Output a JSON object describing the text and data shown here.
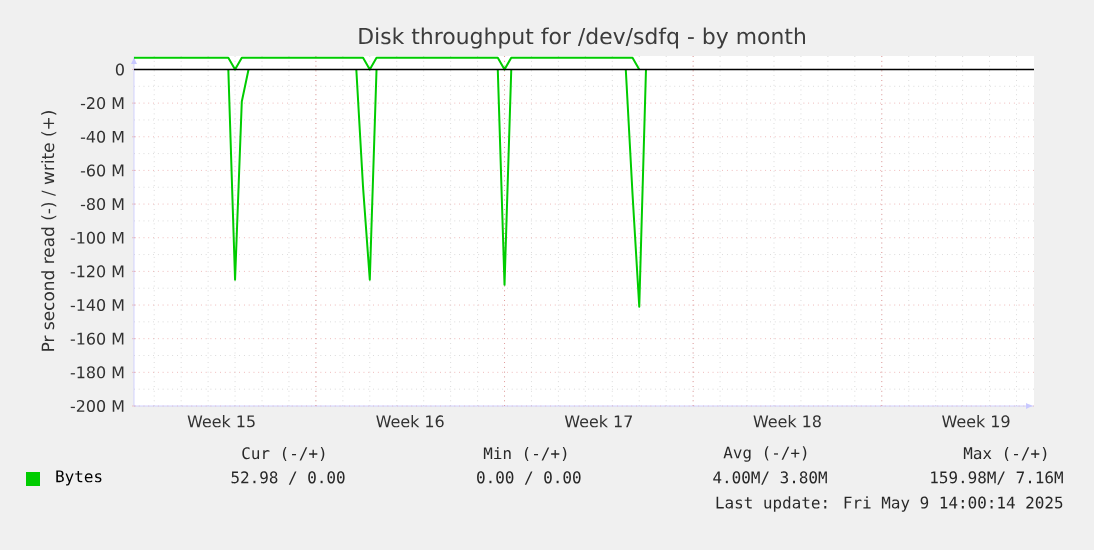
{
  "chart_data": {
    "type": "line",
    "title": "Disk throughput for /dev/sdfq - by month",
    "ylabel": "Pr second read (-) / write (+)",
    "categories": [
      null,
      null,
      null,
      null,
      null,
      null,
      null,
      null,
      null,
      null,
      null,
      null,
      null,
      "Week 15",
      null,
      null,
      null,
      null,
      null,
      null,
      null,
      null,
      null,
      null,
      null,
      null,
      null,
      null,
      null,
      null,
      null,
      null,
      null,
      null,
      null,
      null,
      null,
      null,
      null,
      null,
      null,
      "Week 16",
      null,
      null,
      null,
      null,
      null,
      null,
      null,
      null,
      null,
      null,
      null,
      null,
      null,
      null,
      null,
      null,
      null,
      null,
      null,
      null,
      null,
      null,
      null,
      null,
      null,
      null,
      null,
      "Week 17",
      null,
      null,
      null,
      null,
      null,
      null,
      null,
      null,
      null,
      null,
      null,
      null,
      null,
      null,
      null,
      null,
      null,
      null,
      null,
      null,
      null,
      null,
      null,
      null,
      null,
      null,
      null,
      "Week 18",
      null,
      null,
      null,
      null,
      null,
      null,
      null,
      null,
      null,
      null,
      null,
      null,
      null,
      null,
      null,
      null,
      null,
      null,
      null,
      null,
      null,
      null,
      null,
      null,
      null,
      null,
      null,
      "Week 19",
      null,
      null,
      null,
      null,
      null,
      null,
      null,
      null
    ],
    "ylim": [
      -200,
      8
    ],
    "yticks": [
      0,
      {
        "value": -20,
        "label": "-20 M"
      },
      {
        "value": -40,
        "label": "-40 M"
      },
      {
        "value": -60,
        "label": "-60 M"
      },
      {
        "value": -80,
        "label": "-80 M"
      },
      {
        "value": -100,
        "label": "-100 M"
      },
      {
        "value": -120,
        "label": "-120 M"
      },
      {
        "value": -140,
        "label": "-140 M"
      },
      {
        "value": -160,
        "label": "-160 M"
      },
      {
        "value": -180,
        "label": "-180 M"
      },
      {
        "value": -200,
        "label": "-200 M"
      }
    ],
    "grid": true,
    "legend": "bottom",
    "line_style": "solid",
    "ref_lines": [
      {
        "axis": "y",
        "value": 0,
        "color": "#000000"
      }
    ],
    "series": [
      {
        "color": "#00cc00",
        "values": [
          null,
          null,
          null,
          null,
          null,
          null,
          null,
          null,
          null,
          null,
          null,
          null,
          null,
          null,
          0,
          -125,
          -19,
          0,
          null,
          null,
          null,
          null,
          null,
          null,
          null,
          null,
          null,
          null,
          null,
          null,
          null,
          null,
          null,
          0,
          -70,
          -125,
          0,
          null,
          null,
          null,
          null,
          null,
          null,
          null,
          null,
          null,
          null,
          null,
          null,
          null,
          null,
          null,
          null,
          null,
          0,
          -128,
          0,
          null,
          null,
          null,
          null,
          null,
          null,
          null,
          null,
          null,
          null,
          null,
          null,
          null,
          null,
          null,
          null,
          0,
          -74,
          -141,
          0,
          null,
          null,
          null,
          null,
          null,
          null,
          null,
          null,
          null,
          null,
          null,
          null,
          null,
          null,
          null,
          null,
          null,
          null,
          null,
          null,
          null,
          null,
          null,
          null,
          null,
          null,
          null,
          null,
          null,
          null,
          null,
          null,
          null,
          null,
          null,
          null,
          null,
          null,
          null,
          null,
          null,
          null,
          null,
          null,
          null,
          null,
          null,
          null,
          null,
          null,
          null,
          null,
          null,
          null,
          null,
          null,
          null
        ]
      },
      {
        "name": "Bytes",
        "color": "#00cc00",
        "values": [
          7,
          7,
          7,
          7,
          7,
          7,
          7,
          7,
          7,
          7,
          7,
          7,
          7,
          7,
          7,
          0,
          7,
          7,
          7,
          7,
          7,
          7,
          7,
          7,
          7,
          7,
          7,
          7,
          7,
          7,
          7,
          7,
          7,
          7,
          7,
          0,
          7,
          7,
          7,
          7,
          7,
          7,
          7,
          7,
          7,
          7,
          7,
          7,
          7,
          7,
          7,
          7,
          7,
          7,
          7,
          0,
          7,
          7,
          7,
          7,
          7,
          7,
          7,
          7,
          7,
          7,
          7,
          7,
          7,
          7,
          7,
          7,
          7,
          7,
          7,
          0,
          null,
          null,
          null,
          null,
          null,
          null,
          null,
          null,
          null,
          null,
          null,
          null,
          null,
          null,
          null,
          null,
          null,
          null,
          null,
          null,
          null,
          null,
          null,
          null,
          null,
          null,
          null,
          null,
          null,
          null,
          null,
          null,
          null,
          null,
          null,
          null,
          null,
          null,
          null,
          null,
          null,
          null,
          null,
          null,
          null,
          null,
          null,
          null,
          null,
          null,
          null,
          null,
          null,
          null,
          null,
          null,
          null,
          null
        ]
      }
    ],
    "annotations": [
      "Cur (-/+)",
      "Min (-/+)",
      "Avg (-/+)",
      "Max (-/+)",
      "52.98 / 0.00",
      "0.00 / 0.00",
      "4.00M/ 3.80M",
      "159.98M/ 7.16M",
      "Last update: Fri May 9 14:00:14 2025"
    ]
  }
}
